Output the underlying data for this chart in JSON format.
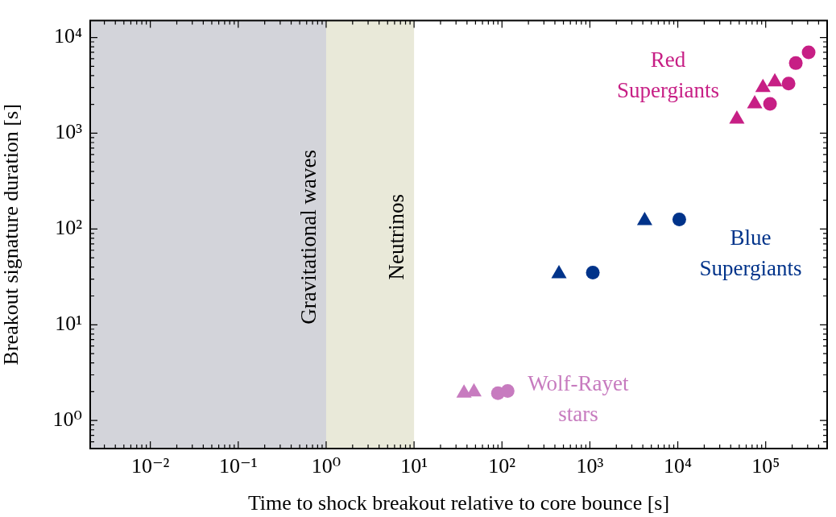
{
  "chart_data": {
    "type": "scatter",
    "xlabel": "Time to shock breakout relative to core bounce [s]",
    "ylabel": "Breakout signature duration [s]",
    "log": "xy",
    "grid": false,
    "legend": false,
    "xlim": [
      0.00207,
      500000
    ],
    "ylim": [
      0.51,
      15000
    ],
    "xticks": [
      {
        "value": 0.01,
        "label": "10⁻²"
      },
      {
        "value": 0.1,
        "label": "10⁻¹"
      },
      {
        "value": 1,
        "label": "10⁰"
      },
      {
        "value": 10,
        "label": "10¹"
      },
      {
        "value": 100,
        "label": "10²"
      },
      {
        "value": 1000,
        "label": "10³"
      },
      {
        "value": 10000,
        "label": "10⁴"
      },
      {
        "value": 100000,
        "label": "10⁵"
      }
    ],
    "yticks": [
      {
        "value": 1,
        "label": "10⁰"
      },
      {
        "value": 10,
        "label": "10¹"
      },
      {
        "value": 100,
        "label": "10²"
      },
      {
        "value": 1000,
        "label": "10³"
      },
      {
        "value": 10000,
        "label": "10⁴"
      }
    ],
    "bands": [
      {
        "axis": "x",
        "from": 0.00207,
        "to": 1,
        "label": "Gravitational waves",
        "color": "#d3d4da"
      },
      {
        "axis": "x",
        "from": 1,
        "to": 10,
        "label": "Neutrinos",
        "color": "#e9e9d9"
      }
    ],
    "series": [
      {
        "marker": "triangle",
        "color": "#c71f85",
        "x": [
          47000,
          75000,
          93000,
          127000
        ],
        "values": [
          1400,
          2030,
          3000,
          3430
        ]
      },
      {
        "marker": "circle",
        "name": "Red\nSupergiants",
        "color": "#c71f85",
        "x": [
          112000,
          182000,
          220000,
          308000
        ],
        "values": [
          2030,
          3300,
          5400,
          7000
        ]
      },
      {
        "marker": "triangle",
        "color": "#00338a",
        "x": [
          445,
          4200
        ],
        "values": [
          34,
          122
        ]
      },
      {
        "marker": "circle",
        "name": "Blue\nSupergiants",
        "color": "#00338a",
        "x": [
          1080,
          10400
        ],
        "values": [
          35,
          126
        ]
      },
      {
        "marker": "triangle",
        "color": "#c77bbf",
        "x": [
          37,
          48
        ],
        "values": [
          1.93,
          1.99
        ]
      },
      {
        "marker": "circle",
        "name": "Wolf-Rayet\nstars",
        "color": "#c77bbf",
        "x": [
          90,
          116
        ],
        "values": [
          1.93,
          2.04
        ]
      }
    ]
  }
}
